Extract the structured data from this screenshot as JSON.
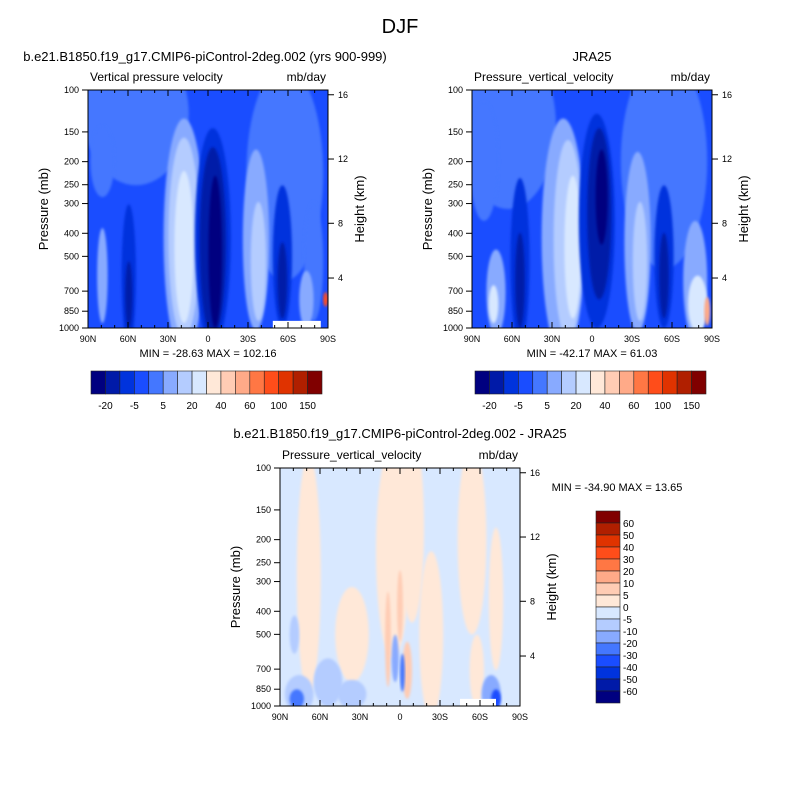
{
  "figure_title": "DJF",
  "palette": [
    "#000080",
    "#001aa8",
    "#0033dd",
    "#1a4dff",
    "#4477ff",
    "#88aaff",
    "#b4ccff",
    "#d8e8ff",
    "#ffe8d8",
    "#ffccb4",
    "#ffaa88",
    "#ff7744",
    "#ff4d1a",
    "#e03300",
    "#b01f00",
    "#800000"
  ],
  "missing_color": "#ffffff",
  "chart_data": [
    {
      "type": "contour",
      "title": "b.e21.B1850.f19_g17.CMIP6-piControl-2deg.002 (yrs 900-999)",
      "left_string": "Vertical pressure velocity",
      "right_string": "mb/day",
      "xlabel": "",
      "ylabel": "Pressure (mb)",
      "y2label": "Height (km)",
      "x_ticks": [
        "90N",
        "60N",
        "30N",
        "0",
        "30S",
        "60S",
        "90S"
      ],
      "y_ticks": [
        100,
        150,
        200,
        250,
        300,
        400,
        500,
        700,
        850,
        1000
      ],
      "y2_ticks": [
        16,
        12,
        8,
        4
      ],
      "y_scale": "log",
      "ylim": [
        1000,
        100
      ],
      "stats": "MIN = -28.63  MAX = 102.16",
      "colorbar": {
        "orientation": "horizontal",
        "labels": [
          "-20",
          "-5",
          "5",
          "20",
          "40",
          "60",
          "100",
          "150"
        ]
      }
    },
    {
      "type": "contour",
      "title": "JRA25",
      "left_string": "Pressure_vertical_velocity",
      "right_string": "mb/day",
      "xlabel": "",
      "ylabel": "Pressure (mb)",
      "y2label": "Height (km)",
      "x_ticks": [
        "90N",
        "60N",
        "30N",
        "0",
        "30S",
        "60S",
        "90S"
      ],
      "y_ticks": [
        100,
        150,
        200,
        250,
        300,
        400,
        500,
        700,
        850,
        1000
      ],
      "y2_ticks": [
        16,
        12,
        8,
        4
      ],
      "y_scale": "log",
      "ylim": [
        1000,
        100
      ],
      "stats": "MIN = -42.17  MAX =  61.03",
      "colorbar": {
        "orientation": "horizontal",
        "labels": [
          "-20",
          "-5",
          "5",
          "20",
          "40",
          "60",
          "100",
          "150"
        ]
      }
    },
    {
      "type": "contour",
      "title": "b.e21.B1850.f19_g17.CMIP6-piControl-2deg.002 - JRA25",
      "left_string": "Pressure_vertical_velocity",
      "right_string": "mb/day",
      "xlabel": "",
      "ylabel": "Pressure (mb)",
      "y2label": "Height (km)",
      "x_ticks": [
        "90N",
        "60N",
        "30N",
        "0",
        "30S",
        "60S",
        "90S"
      ],
      "y_ticks": [
        100,
        150,
        200,
        250,
        300,
        400,
        500,
        700,
        850,
        1000
      ],
      "y2_ticks": [
        16,
        12,
        8,
        4
      ],
      "y_scale": "log",
      "ylim": [
        1000,
        100
      ],
      "stats": "MIN = -34.90  MAX =  13.65",
      "colorbar": {
        "orientation": "vertical",
        "labels": [
          "60",
          "50",
          "40",
          "30",
          "20",
          "10",
          "5",
          "0",
          "-5",
          "-10",
          "-20",
          "-30",
          "-40",
          "-50",
          "-60"
        ]
      }
    }
  ]
}
